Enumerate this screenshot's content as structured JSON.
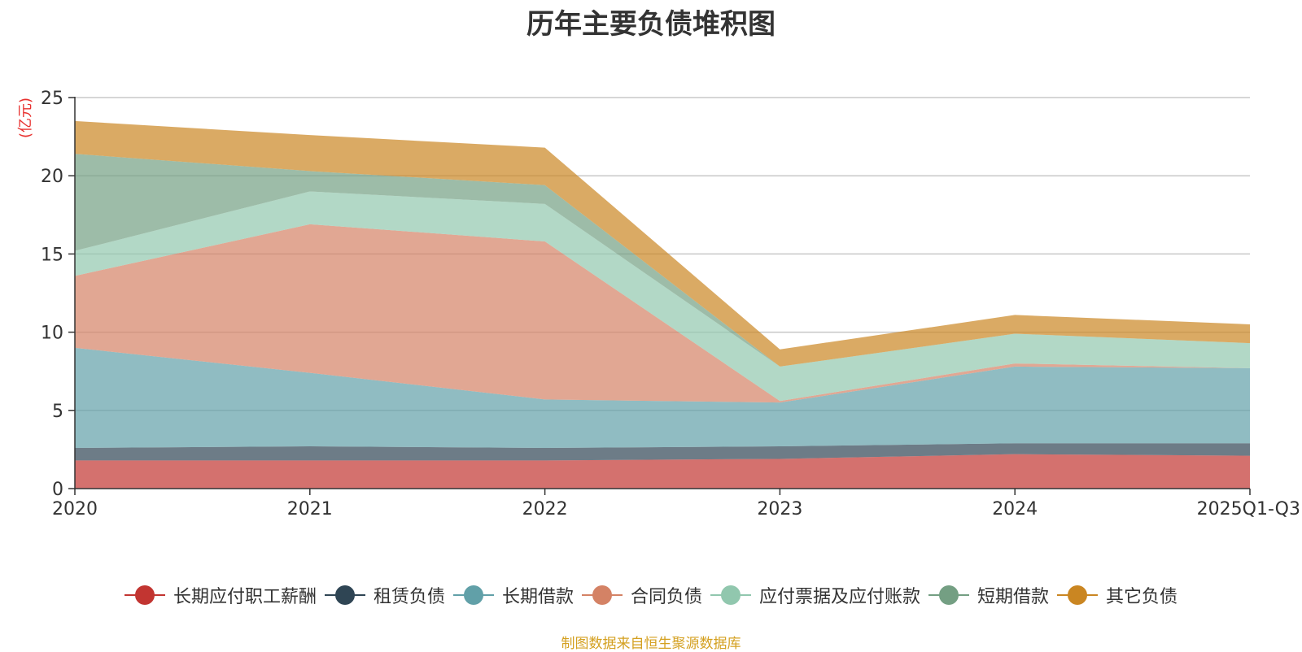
{
  "chart_data": {
    "type": "area",
    "stacked": true,
    "title": "历年主要负债堆积图",
    "ylabel": "(亿元)",
    "xlabel": "",
    "x": [
      "2020",
      "2021",
      "2022",
      "2023",
      "2024",
      "2025Q1-Q3"
    ],
    "ylim": [
      0,
      25
    ],
    "yticks": [
      0,
      5,
      10,
      15,
      20,
      25
    ],
    "grid": true,
    "legend_position": "bottom",
    "series": [
      {
        "name": "长期应付职工薪酬",
        "color": "#c23531",
        "values": [
          1.8,
          1.8,
          1.8,
          1.9,
          2.2,
          2.1
        ]
      },
      {
        "name": "租赁负债",
        "color": "#2f4554",
        "values": [
          0.8,
          0.9,
          0.8,
          0.8,
          0.7,
          0.8
        ]
      },
      {
        "name": "长期借款",
        "color": "#61a0a8",
        "values": [
          6.4,
          4.7,
          3.1,
          2.8,
          4.9,
          4.8
        ]
      },
      {
        "name": "合同负债",
        "color": "#d48265",
        "values": [
          4.6,
          9.5,
          10.1,
          0.1,
          0.2,
          0.0
        ]
      },
      {
        "name": "应付票据及应付账款",
        "color": "#91c7ae",
        "values": [
          1.6,
          2.1,
          2.4,
          2.2,
          1.9,
          1.6
        ]
      },
      {
        "name": "短期借款",
        "color": "#749f83",
        "values": [
          6.2,
          1.3,
          1.2,
          0.0,
          0.0,
          0.0
        ]
      },
      {
        "name": "其它负债",
        "color": "#ca8622",
        "values": [
          2.1,
          2.3,
          2.4,
          1.1,
          1.2,
          1.2
        ]
      }
    ]
  },
  "footer": {
    "source": "制图数据来自恒生聚源数据库"
  }
}
